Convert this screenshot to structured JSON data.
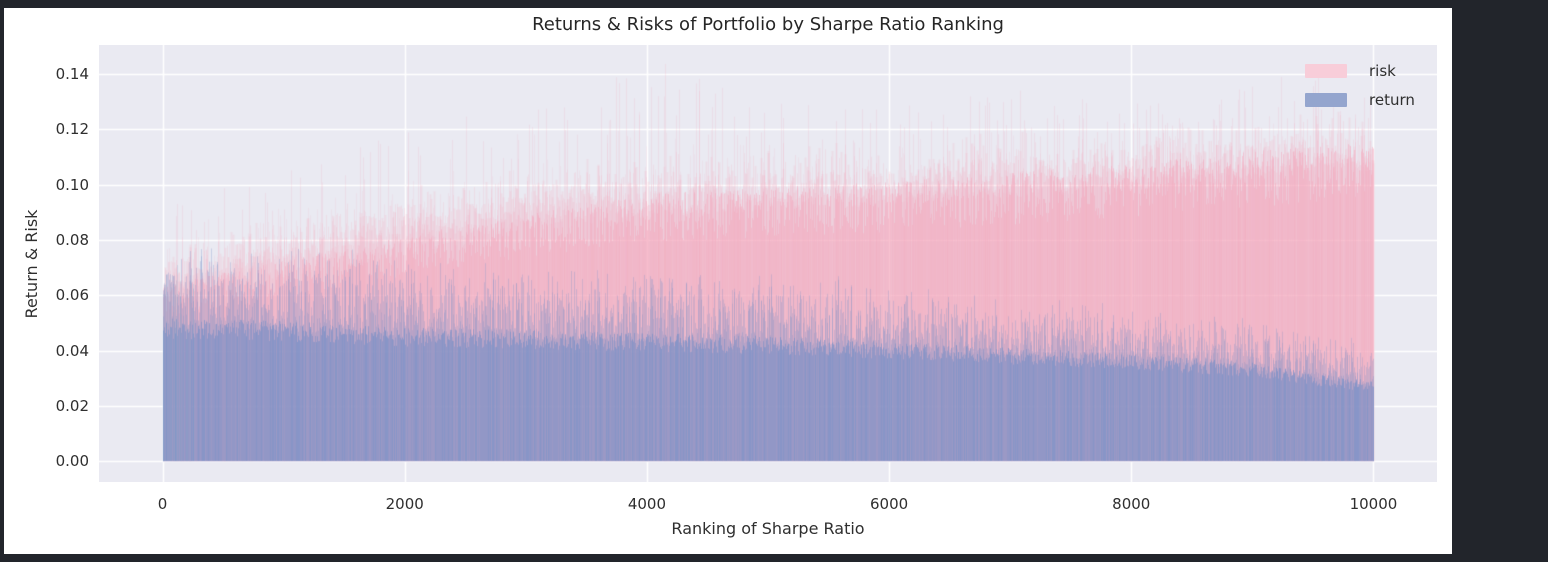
{
  "window": {
    "desktop_background": "#22252b",
    "figure_background": "#ffffff"
  },
  "chart_data": {
    "type": "bar",
    "title": "Returns & Risks of Portfolio by Sharpe Ratio Ranking",
    "xlabel": "Ranking of Sharpe Ratio",
    "ylabel": "Return & Risk",
    "n_portfolios": 10000,
    "xlim": [
      -525,
      10525
    ],
    "ylim": [
      -0.00755,
      0.15055
    ],
    "x_ticks": [
      0,
      2000,
      4000,
      6000,
      8000,
      10000
    ],
    "x_tick_labels": [
      "0",
      "2000",
      "4000",
      "6000",
      "8000",
      "10000"
    ],
    "y_ticks": [
      0.0,
      0.02,
      0.04,
      0.06,
      0.08,
      0.1,
      0.12,
      0.14
    ],
    "y_tick_labels": [
      "0.00",
      "0.02",
      "0.04",
      "0.06",
      "0.08",
      "0.10",
      "0.12",
      "0.14"
    ],
    "grid": true,
    "legend": {
      "position": "upper right",
      "entries": [
        {
          "label": "risk",
          "swatch_color": "#f8cdd9"
        },
        {
          "label": "return",
          "swatch_color": "#94a5ce"
        }
      ]
    },
    "series": [
      {
        "name": "risk",
        "bar_color": "#f6a8be",
        "alpha": 0.52
      },
      {
        "name": "return",
        "bar_color": "#7490c8",
        "alpha": 0.66
      }
    ],
    "envelopes": {
      "comment": "estimated value envelopes vs Sharpe-ratio ranking, read off the plot",
      "ranking": [
        0,
        1000,
        2000,
        3000,
        4000,
        5000,
        6000,
        7000,
        8000,
        9000,
        9800,
        10000
      ],
      "return_solid": [
        0.048,
        0.047,
        0.045,
        0.044,
        0.043,
        0.042,
        0.04,
        0.038,
        0.036,
        0.033,
        0.028,
        0.027
      ],
      "return_max": [
        0.075,
        0.075,
        0.072,
        0.07,
        0.068,
        0.065,
        0.062,
        0.058,
        0.055,
        0.05,
        0.045,
        0.042
      ],
      "risk_solid": [
        0.058,
        0.066,
        0.074,
        0.082,
        0.088,
        0.09,
        0.092,
        0.095,
        0.098,
        0.102,
        0.105,
        0.104
      ],
      "risk_typical": [
        0.068,
        0.08,
        0.088,
        0.095,
        0.1,
        0.102,
        0.104,
        0.106,
        0.108,
        0.11,
        0.114,
        0.112
      ],
      "risk_max": [
        0.095,
        0.105,
        0.12,
        0.13,
        0.145,
        0.13,
        0.13,
        0.135,
        0.13,
        0.138,
        0.145,
        0.13
      ]
    },
    "styles": {
      "plot_background": "#eaeaf2",
      "grid_color": "#ffffff",
      "text_color": "#2f2f2f",
      "title_color": "#262626"
    }
  }
}
